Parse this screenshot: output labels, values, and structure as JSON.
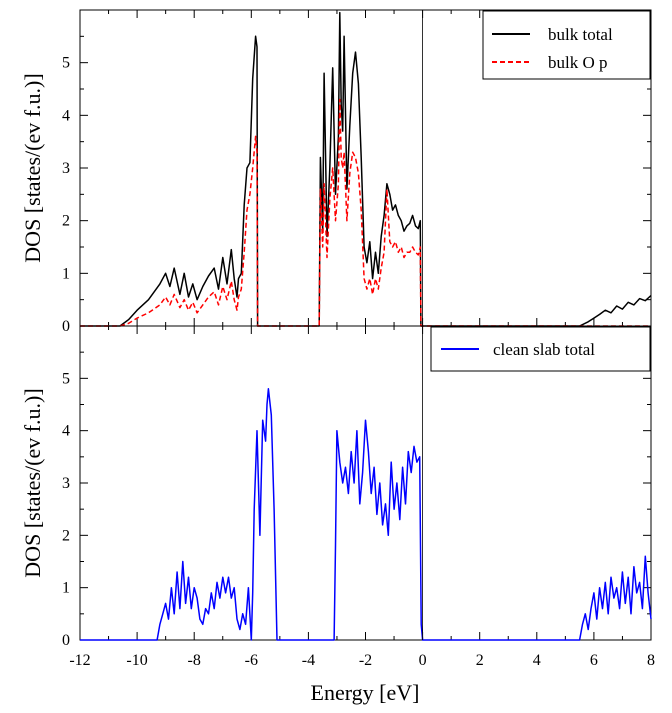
{
  "figure": {
    "xlabel": "Energy [eV]",
    "x_ticks": [
      "-12",
      "-10",
      "-8",
      "-6",
      "-4",
      "-2",
      "0",
      "2",
      "4",
      "6",
      "8"
    ],
    "y_ticks": [
      "0",
      "1",
      "2",
      "3",
      "4",
      "5"
    ]
  },
  "colors": {
    "black": "#000000",
    "red": "#ff0000",
    "blue": "#0000ff"
  },
  "chart_data": [
    {
      "type": "line",
      "panel": "top",
      "ylabel": "DOS [states/(ev f.u.)]",
      "xlim": [
        -12,
        8
      ],
      "ylim": [
        0,
        6
      ],
      "legend_position": "top-right",
      "series": [
        {
          "name": "bulk total",
          "color": "#000000",
          "dash": false,
          "x": [
            -12,
            -10.6,
            -10.3,
            -10.0,
            -9.6,
            -9.2,
            -9.0,
            -8.85,
            -8.7,
            -8.5,
            -8.35,
            -8.2,
            -8.05,
            -7.9,
            -7.7,
            -7.5,
            -7.3,
            -7.15,
            -7.0,
            -6.85,
            -6.7,
            -6.6,
            -6.5,
            -6.45,
            -6.35,
            -6.25,
            -6.15,
            -6.05,
            -5.95,
            -5.85,
            -5.8,
            -5.78,
            -5.7,
            -3.62,
            -3.58,
            -3.5,
            -3.45,
            -3.35,
            -3.25,
            -3.15,
            -3.05,
            -2.95,
            -2.9,
            -2.85,
            -2.8,
            -2.75,
            -2.65,
            -2.55,
            -2.45,
            -2.35,
            -2.25,
            -2.15,
            -2.05,
            -1.95,
            -1.85,
            -1.75,
            -1.65,
            -1.55,
            -1.45,
            -1.35,
            -1.25,
            -1.15,
            -1.05,
            -0.95,
            -0.85,
            -0.75,
            -0.65,
            -0.55,
            -0.45,
            -0.35,
            -0.25,
            -0.15,
            -0.08,
            -0.06,
            0.0,
            5.5,
            5.8,
            6.0,
            6.2,
            6.4,
            6.6,
            6.8,
            7.0,
            7.2,
            7.4,
            7.6,
            7.8,
            8.0
          ],
          "y": [
            0,
            0,
            0.12,
            0.3,
            0.5,
            0.8,
            1.0,
            0.75,
            1.1,
            0.6,
            1.0,
            0.55,
            0.8,
            0.5,
            0.75,
            0.95,
            1.1,
            0.7,
            1.3,
            0.8,
            1.45,
            0.9,
            0.55,
            0.9,
            1.0,
            2.3,
            3.0,
            3.1,
            4.7,
            5.5,
            5.3,
            0,
            0,
            0,
            3.2,
            1.8,
            4.8,
            1.7,
            3.0,
            4.9,
            2.5,
            3.6,
            5.95,
            4.2,
            3.7,
            5.5,
            2.6,
            3.8,
            4.8,
            5.2,
            4.6,
            3.2,
            1.5,
            1.2,
            1.6,
            0.9,
            1.4,
            1.0,
            1.7,
            2.1,
            2.7,
            2.5,
            2.2,
            2.3,
            2.1,
            2.0,
            1.8,
            1.9,
            1.95,
            2.1,
            1.9,
            1.85,
            2.0,
            0,
            0,
            0,
            0.08,
            0.15,
            0.22,
            0.3,
            0.25,
            0.38,
            0.32,
            0.45,
            0.4,
            0.52,
            0.48,
            0.58
          ]
        },
        {
          "name": "bulk O p",
          "color": "#ff0000",
          "dash": true,
          "x": [
            -12,
            -10.6,
            -10.3,
            -10.0,
            -9.6,
            -9.2,
            -9.0,
            -8.85,
            -8.7,
            -8.5,
            -8.35,
            -8.2,
            -8.05,
            -7.9,
            -7.7,
            -7.5,
            -7.3,
            -7.15,
            -7.0,
            -6.85,
            -6.7,
            -6.6,
            -6.5,
            -6.45,
            -6.35,
            -6.25,
            -6.15,
            -6.05,
            -5.95,
            -5.85,
            -5.8,
            -5.78,
            -5.7,
            -3.62,
            -3.58,
            -3.5,
            -3.45,
            -3.35,
            -3.25,
            -3.15,
            -3.05,
            -2.95,
            -2.9,
            -2.85,
            -2.8,
            -2.75,
            -2.65,
            -2.55,
            -2.45,
            -2.35,
            -2.25,
            -2.15,
            -2.05,
            -1.95,
            -1.85,
            -1.75,
            -1.65,
            -1.55,
            -1.45,
            -1.35,
            -1.25,
            -1.15,
            -1.05,
            -0.95,
            -0.85,
            -0.75,
            -0.65,
            -0.55,
            -0.45,
            -0.35,
            -0.25,
            -0.15,
            -0.08,
            -0.06,
            0.0,
            8.0
          ],
          "y": [
            0,
            0,
            0.05,
            0.15,
            0.25,
            0.4,
            0.55,
            0.4,
            0.6,
            0.35,
            0.5,
            0.3,
            0.45,
            0.25,
            0.4,
            0.55,
            0.65,
            0.4,
            0.75,
            0.5,
            0.85,
            0.5,
            0.3,
            0.55,
            0.7,
            1.4,
            2.2,
            2.5,
            3.0,
            3.6,
            3.3,
            0,
            0,
            0,
            2.6,
            1.5,
            2.7,
            1.3,
            2.4,
            3.0,
            2.0,
            2.7,
            4.3,
            3.2,
            3.0,
            3.3,
            2.0,
            2.9,
            3.3,
            3.2,
            2.9,
            2.2,
            0.9,
            0.7,
            0.9,
            0.6,
            0.9,
            0.7,
            1.1,
            1.4,
            2.6,
            1.6,
            1.5,
            1.6,
            1.4,
            1.5,
            1.3,
            1.4,
            1.4,
            1.5,
            1.4,
            1.35,
            1.5,
            0,
            0,
            0
          ]
        }
      ]
    },
    {
      "type": "line",
      "panel": "bottom",
      "ylabel": "DOS [states/(ev f.u.)]",
      "xlim": [
        -12,
        8
      ],
      "ylim": [
        0,
        6
      ],
      "legend_position": "top-right",
      "series": [
        {
          "name": "clean slab total",
          "color": "#0000ff",
          "dash": false,
          "x": [
            -12,
            -9.3,
            -9.2,
            -9.1,
            -9.0,
            -8.9,
            -8.8,
            -8.7,
            -8.6,
            -8.5,
            -8.4,
            -8.3,
            -8.2,
            -8.1,
            -8.0,
            -7.9,
            -7.8,
            -7.7,
            -7.6,
            -7.5,
            -7.4,
            -7.3,
            -7.2,
            -7.1,
            -7.0,
            -6.9,
            -6.8,
            -6.7,
            -6.6,
            -6.5,
            -6.4,
            -6.3,
            -6.2,
            -6.1,
            -6.0,
            -5.95,
            -5.9,
            -5.8,
            -5.7,
            -5.6,
            -5.5,
            -5.45,
            -5.4,
            -5.3,
            -5.2,
            -5.1,
            -5.0,
            -4.95,
            -4.9,
            -3.1,
            -3.05,
            -3.0,
            -2.9,
            -2.8,
            -2.7,
            -2.6,
            -2.5,
            -2.4,
            -2.3,
            -2.2,
            -2.1,
            -2.0,
            -1.9,
            -1.8,
            -1.7,
            -1.6,
            -1.5,
            -1.4,
            -1.3,
            -1.2,
            -1.1,
            -1.0,
            -0.9,
            -0.8,
            -0.7,
            -0.6,
            -0.5,
            -0.4,
            -0.3,
            -0.2,
            -0.1,
            -0.05,
            0.0,
            5.5,
            5.6,
            5.7,
            5.8,
            5.9,
            6.0,
            6.1,
            6.2,
            6.3,
            6.4,
            6.5,
            6.6,
            6.7,
            6.8,
            6.9,
            7.0,
            7.1,
            7.2,
            7.3,
            7.4,
            7.5,
            7.6,
            7.7,
            7.8,
            7.9,
            8.0
          ],
          "y": [
            0,
            0,
            0.3,
            0.5,
            0.7,
            0.4,
            1.0,
            0.5,
            1.3,
            0.6,
            1.5,
            0.7,
            1.2,
            0.6,
            1.0,
            0.8,
            0.4,
            0.3,
            0.6,
            0.5,
            0.9,
            0.6,
            1.1,
            0.8,
            1.2,
            0.9,
            1.2,
            0.8,
            1.0,
            0.4,
            0.2,
            0.5,
            0.3,
            1.0,
            0.0,
            0.9,
            2.5,
            4.0,
            2.0,
            4.2,
            3.8,
            4.5,
            4.8,
            4.3,
            2.5,
            0.0,
            0.0,
            0.0,
            0,
            0,
            1.8,
            4.0,
            3.4,
            3.0,
            3.3,
            2.8,
            3.6,
            3.0,
            4.0,
            2.6,
            3.2,
            4.2,
            3.6,
            2.8,
            3.3,
            2.4,
            3.0,
            2.2,
            2.6,
            2.0,
            3.4,
            2.5,
            3.0,
            2.3,
            3.3,
            2.6,
            3.6,
            3.2,
            3.7,
            3.4,
            3.5,
            0.3,
            0,
            0,
            0.3,
            0.5,
            0.2,
            0.6,
            0.9,
            0.4,
            1.0,
            0.6,
            1.1,
            0.5,
            1.2,
            0.8,
            1.0,
            0.6,
            1.3,
            0.7,
            1.2,
            0.5,
            1.4,
            0.9,
            1.1,
            0.6,
            1.6,
            0.9,
            0.4
          ]
        }
      ]
    }
  ]
}
